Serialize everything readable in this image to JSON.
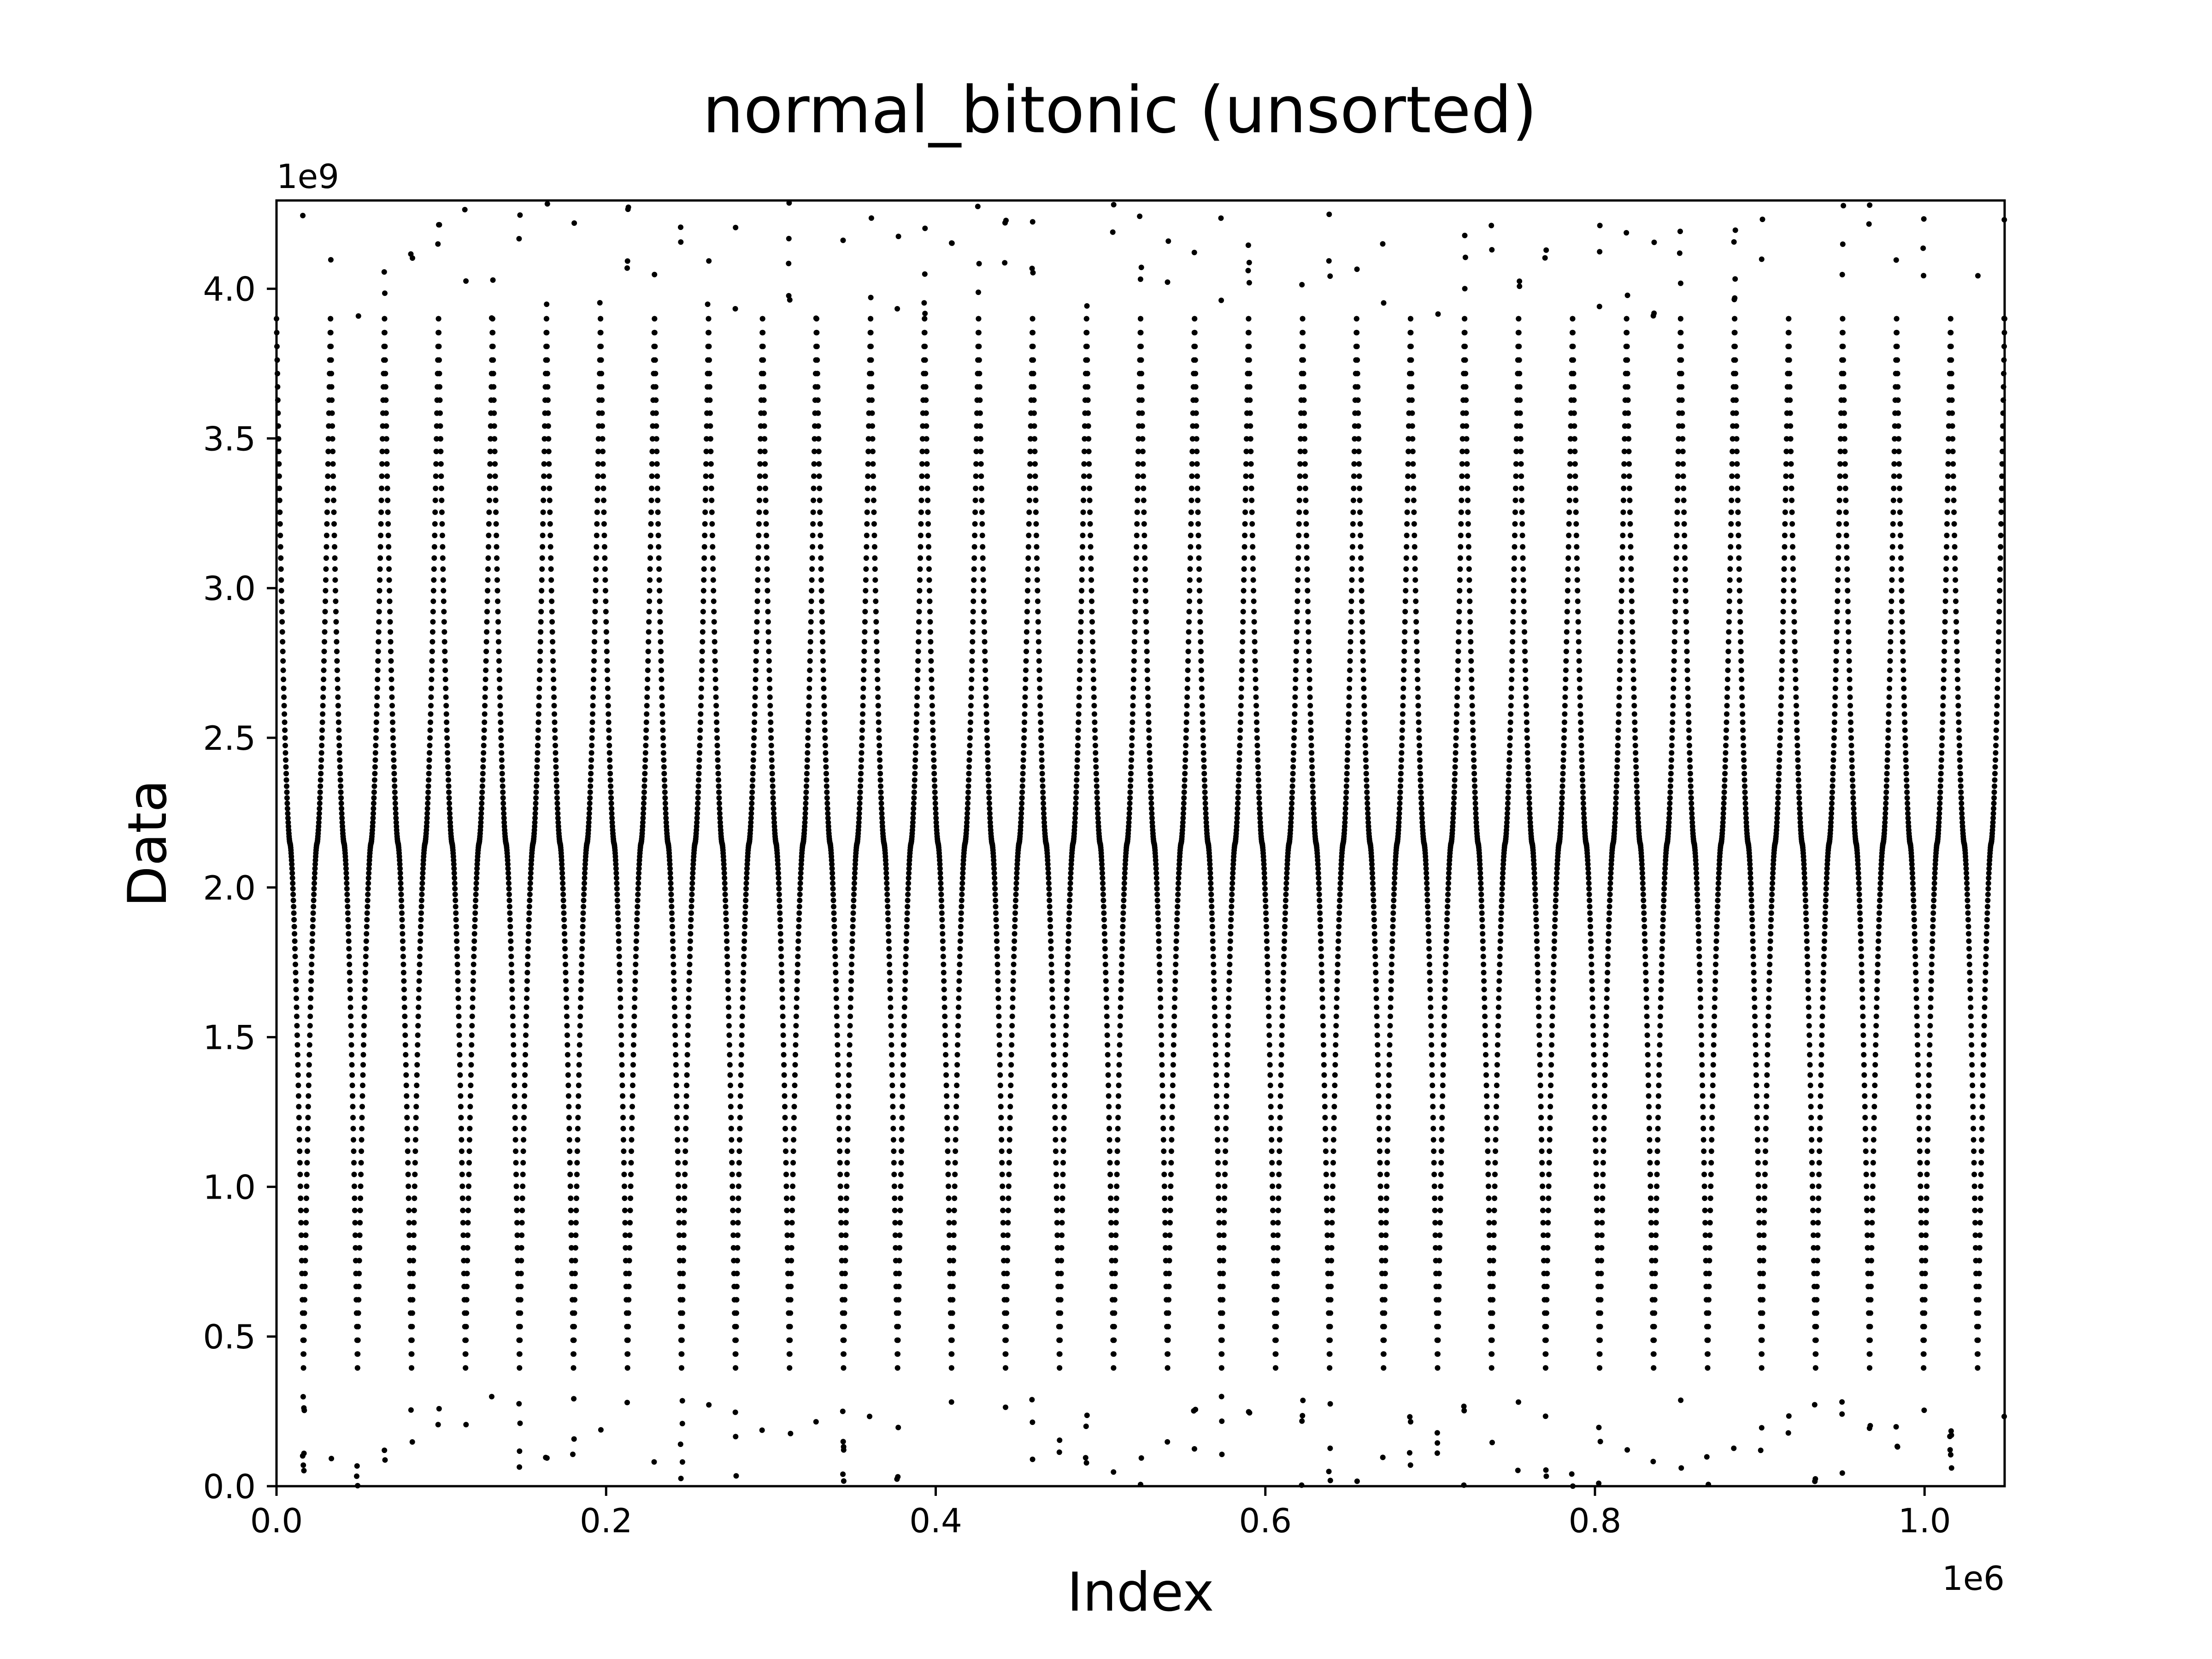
{
  "chart_data": {
    "type": "scatter",
    "title": "normal_bitonic (unsorted)",
    "xlabel": "Index",
    "ylabel": "Data",
    "x_offset_label": "1e6",
    "y_offset_label": "1e9",
    "xlim": [
      0,
      1048576
    ],
    "ylim": [
      0,
      4294967296
    ],
    "xticks": [
      0,
      200000,
      400000,
      600000,
      800000,
      1000000
    ],
    "xtick_labels": [
      "0.0",
      "0.2",
      "0.4",
      "0.6",
      "0.8",
      "1.0"
    ],
    "yticks": [
      0,
      500000000,
      1000000000,
      1500000000,
      2000000000,
      2500000000,
      3000000000,
      3500000000,
      4000000000
    ],
    "ytick_labels": [
      "0.0",
      "0.5",
      "1.0",
      "1.5",
      "2.0",
      "2.5",
      "3.0",
      "3.5",
      "4.0"
    ],
    "grid": false,
    "marker_color": "#000000",
    "pattern": {
      "description_kind": "bitonic",
      "segment_length": 16384,
      "segment_count": 64,
      "center_value": 2147483648,
      "typical_min": 300000000,
      "typical_max": 3900000000,
      "outlier_min": 0,
      "outlier_max": 4290000000
    }
  }
}
